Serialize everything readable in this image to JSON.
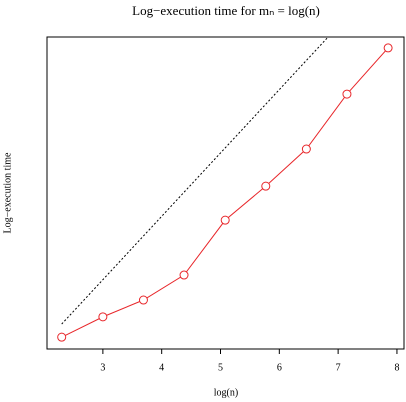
{
  "chart_data": {
    "type": "line",
    "title": "Log−execution time for mₙ = log(n)",
    "x_label": "log(n)",
    "y_label": "Log−execution time",
    "x": [
      2.3,
      3.0,
      3.69,
      4.38,
      5.08,
      5.77,
      6.46,
      7.15,
      7.85
    ],
    "series": [
      {
        "color": "#e8262a",
        "values": [
          0.38,
          1.03,
          1.57,
          2.37,
          4.13,
          5.22,
          6.41,
          8.17,
          9.65
        ],
        "markers": true
      },
      {
        "color": "#000000",
        "x": [
          2.3,
          6.83
        ],
        "values": [
          0.8,
          10.0
        ],
        "dashed": true
      }
    ],
    "xlim": [
      2.05,
      8.12
    ],
    "xticks": [
      3,
      4,
      5,
      6,
      7,
      8
    ],
    "ylim": [
      0,
      10
    ]
  }
}
